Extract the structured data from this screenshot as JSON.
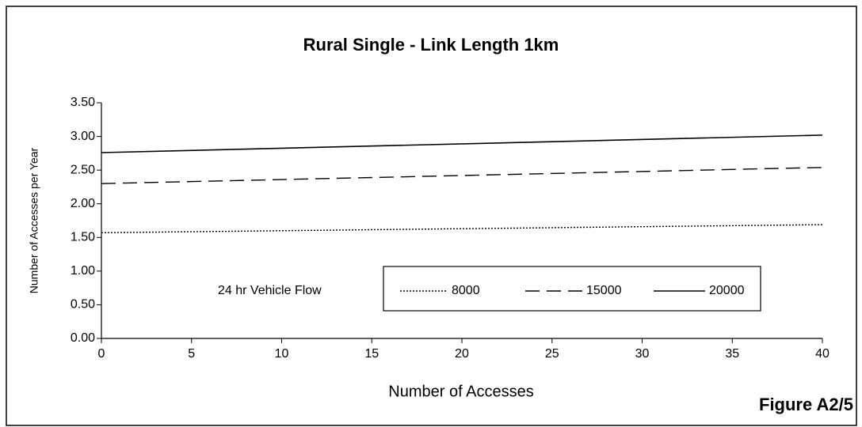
{
  "chart_data": {
    "type": "line",
    "title": "Rural Single - Link Length 1km",
    "x_label": "Number of Accesses",
    "y_label": "Number of Accesses per Year",
    "figure_label": "Figure A2/5",
    "legend_title": "24 hr Vehicle Flow",
    "x": [
      0,
      40
    ],
    "series": [
      {
        "name": "8000",
        "color": "#000000",
        "dash": "dotted",
        "values": [
          1.57,
          1.69
        ]
      },
      {
        "name": "15000",
        "color": "#000000",
        "dash": "dashed",
        "values": [
          2.3,
          2.54
        ]
      },
      {
        "name": "20000",
        "color": "#000000",
        "dash": "solid",
        "values": [
          2.76,
          3.02
        ]
      }
    ],
    "xlim": [
      0,
      40
    ],
    "xticks": [
      0,
      5,
      10,
      15,
      20,
      25,
      30,
      35,
      40
    ],
    "ylim": [
      0,
      3.5
    ],
    "yticks": [
      {
        "value": 0,
        "label": "0.00"
      },
      {
        "value": 0.5,
        "label": "0.50"
      },
      {
        "value": 1,
        "label": "1.00"
      },
      {
        "value": 1.5,
        "label": "1.50"
      },
      {
        "value": 2,
        "label": "2.00"
      },
      {
        "value": 2.5,
        "label": "2.50"
      },
      {
        "value": 3,
        "label": "3.00"
      },
      {
        "value": 3.5,
        "label": "3.50"
      }
    ],
    "grid": false
  }
}
